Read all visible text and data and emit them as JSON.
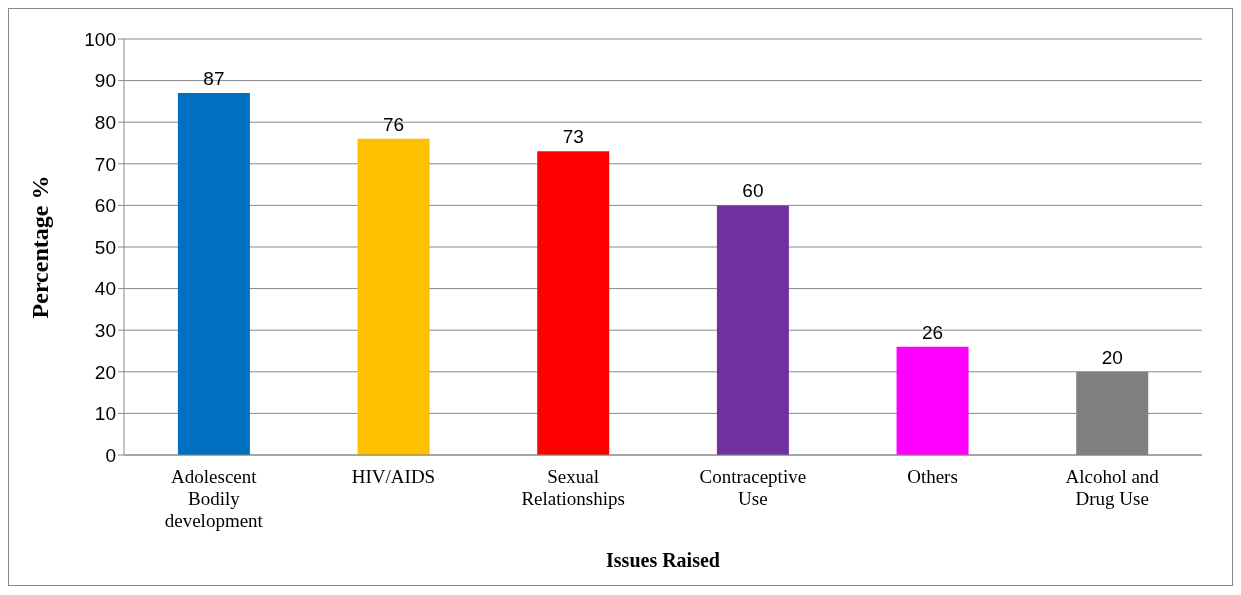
{
  "chart_data": {
    "type": "bar",
    "xlabel": "Issues Raised",
    "ylabel": "Percentage %",
    "categories": [
      "Adolescent Bodily development",
      "HIV/AIDS",
      "Sexual Relationships",
      "Contraceptive Use",
      "Others",
      "Alcohol and Drug Use"
    ],
    "values": [
      87,
      76,
      73,
      60,
      26,
      20
    ],
    "colors": [
      "#0070c0",
      "#ffc000",
      "#ff0000",
      "#7030a0",
      "#ff00ff",
      "#808080"
    ],
    "ylim": [
      0,
      100
    ],
    "yticks": [
      0,
      10,
      20,
      30,
      40,
      50,
      60,
      70,
      80,
      90,
      100
    ],
    "grid": "y",
    "data_labels": true
  }
}
